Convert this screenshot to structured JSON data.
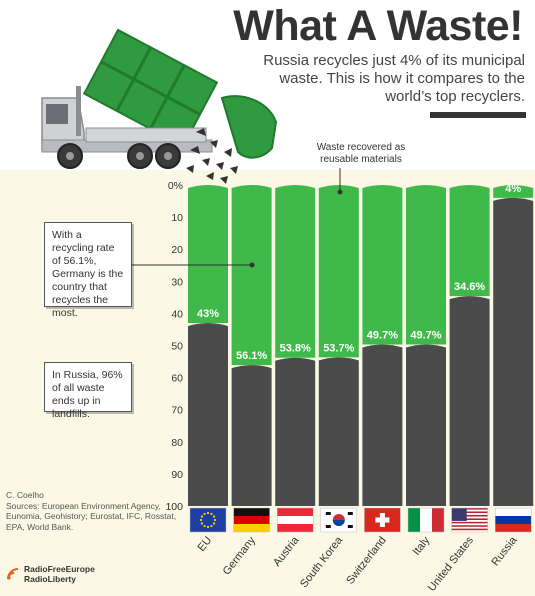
{
  "title": "What A Waste!",
  "subtitle": "Russia recycles just 4% of its municipal waste. This is how it compares to the world’s top recyclers.",
  "annotations": {
    "recovered": "Waste recovered as reusable materials",
    "germany": "With a recycling rate of 56.1%, Germany is the country that recycles the most.",
    "russia": "In Russia, 96% of all waste ends up in landfills."
  },
  "credit": {
    "author": "C. Coelho",
    "sources": "Sources: European Environment Agency, Eunomia, Geohistory; Eurostat, IFC, Rosstat, EPA, World Bank."
  },
  "logo": {
    "line1": "RadioFreeEurope",
    "line2": "RadioLiberty"
  },
  "colors": {
    "recycled": "#3fba4a",
    "landfill": "#4b4b4b",
    "background": "#fbf9e6",
    "truck": "#2f9a3f"
  },
  "chart_data": {
    "type": "bar",
    "stacked": true,
    "categories": [
      "EU",
      "Germany",
      "Austria",
      "South Korea",
      "Switzerland",
      "Italy",
      "United States",
      "Russia"
    ],
    "series": [
      {
        "values": [
          43,
          56.1,
          53.8,
          53.7,
          49.7,
          49.7,
          34.6,
          4
        ]
      },
      {
        "values": [
          57,
          43.9,
          46.2,
          46.3,
          50.3,
          50.3,
          65.4,
          96
        ]
      }
    ],
    "value_labels": [
      "43%",
      "56.1%",
      "53.8%",
      "53.7%",
      "49.7%",
      "49.7%",
      "34.6%",
      "4%"
    ],
    "y_ticks": [
      "0%",
      "10",
      "20",
      "30",
      "40",
      "50",
      "60",
      "70",
      "80",
      "90",
      "100"
    ],
    "ylim": [
      0,
      100
    ],
    "y_inverted": true,
    "flags": [
      "eu-flag-icon",
      "germany-flag-icon",
      "austria-flag-icon",
      "south-korea-flag-icon",
      "switzerland-flag-icon",
      "italy-flag-icon",
      "usa-flag-icon",
      "russia-flag-icon"
    ]
  }
}
